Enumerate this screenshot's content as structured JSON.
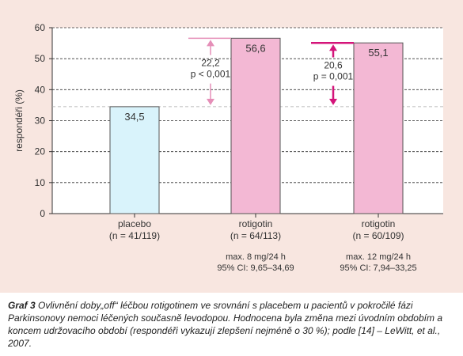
{
  "chart_data": {
    "type": "bar",
    "ylabel": "respondéři (%)",
    "ylim": [
      0,
      60
    ],
    "yticks": [
      0,
      10,
      20,
      30,
      40,
      50,
      60
    ],
    "grid": true,
    "colors": {
      "placebo_fill": "#d9f3fb",
      "placebo_stroke": "#5a5a5a",
      "rotigotin_fill": "#f3b8d4",
      "rotigotin_stroke": "#5a5a5a",
      "arrow_light": "#e58fb8",
      "arrow_dark": "#d4147a",
      "baseline_dash": "#aaaaaa"
    },
    "categories": [
      {
        "name": "placebo",
        "n": "(n = 41/119)",
        "value": 34.5,
        "label": "34,5",
        "dose": "",
        "ci": "",
        "style": "placebo"
      },
      {
        "name": "rotigotin",
        "n": "(n = 64/113)",
        "value": 56.6,
        "label": "56,6",
        "dose": "max. 8 mg/24 h",
        "ci": "95% CI: 9,65–34,69",
        "style": "rotigotin"
      },
      {
        "name": "rotigotin",
        "n": "(n = 60/109)",
        "value": 55.1,
        "label": "55,1",
        "dose": "max. 12 mg/24 h",
        "ci": "95% CI: 7,94–33,25",
        "style": "rotigotin"
      }
    ],
    "annotations": [
      {
        "bar": 1,
        "diff": "22,2",
        "p": "p < 0,001",
        "style": "light"
      },
      {
        "bar": 2,
        "diff": "20,6",
        "p": "p = 0,001",
        "style": "dark"
      }
    ]
  },
  "caption": {
    "label": "Graf 3",
    "text": " Ovlivnění doby„off“ léčbou rotigotinem ve srovnání s placebem u pacientů v pokročilé fázi Parkinsonovy nemoci léčených současně levodopou. Hodnocena byla změna mezi úvodním obdobím a koncem udržovacího období (respondéři vykazují zlepšení nejméně o 30 %); podle [14] – LeWitt, et al., 2007."
  }
}
